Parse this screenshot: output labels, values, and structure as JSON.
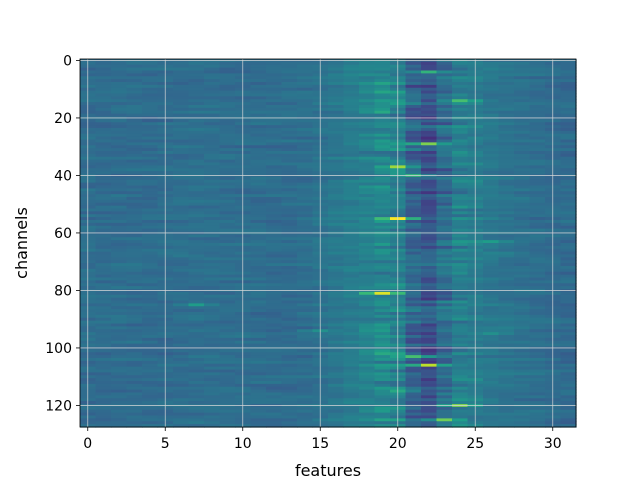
{
  "chart_data": {
    "type": "heatmap",
    "xlabel": "features",
    "ylabel": "channels",
    "columns": 32,
    "rows": 128,
    "xlim": [
      -0.5,
      31.5
    ],
    "ylim": [
      127.5,
      -0.5
    ],
    "y_inverted": true,
    "colormap": "viridis",
    "grid": true,
    "x_ticks": [
      0,
      5,
      10,
      15,
      20,
      25,
      30
    ],
    "x_tick_labels": [
      "0",
      "5",
      "10",
      "15",
      "20",
      "25",
      "30"
    ],
    "y_ticks": [
      0,
      20,
      40,
      60,
      80,
      100,
      120
    ],
    "y_tick_labels": [
      "0",
      "20",
      "40",
      "60",
      "80",
      "100",
      "120"
    ],
    "column_profile": [
      0.36,
      0.34,
      0.36,
      0.35,
      0.34,
      0.36,
      0.35,
      0.37,
      0.36,
      0.35,
      0.36,
      0.36,
      0.35,
      0.35,
      0.36,
      0.37,
      0.4,
      0.42,
      0.44,
      0.47,
      0.5,
      0.3,
      0.18,
      0.4,
      0.45,
      0.42,
      0.4,
      0.38,
      0.37,
      0.36,
      0.35,
      0.35
    ],
    "hotspots": [
      {
        "x": 20,
        "y": 55,
        "value": 1.0
      },
      {
        "x": 19,
        "y": 81,
        "value": 0.95
      },
      {
        "x": 22,
        "y": 106,
        "value": 0.9
      },
      {
        "x": 20,
        "y": 37,
        "value": 0.85
      },
      {
        "x": 22,
        "y": 29,
        "value": 0.8
      },
      {
        "x": 24,
        "y": 120,
        "value": 0.8
      },
      {
        "x": 23,
        "y": 125,
        "value": 0.78
      },
      {
        "x": 21,
        "y": 103,
        "value": 0.7
      },
      {
        "x": 24,
        "y": 14,
        "value": 0.7
      },
      {
        "x": 21,
        "y": 40,
        "value": 0.65
      },
      {
        "x": 22,
        "y": 4,
        "value": 0.65
      },
      {
        "x": 19,
        "y": 18,
        "value": 0.6
      },
      {
        "x": 20,
        "y": 115,
        "value": 0.6
      },
      {
        "x": 26,
        "y": 63,
        "value": 0.55
      },
      {
        "x": 7,
        "y": 85,
        "value": 0.55
      },
      {
        "x": 20,
        "y": 31,
        "value": 0.55
      },
      {
        "x": 15,
        "y": 94,
        "value": 0.5
      },
      {
        "x": 26,
        "y": 95,
        "value": 0.5
      }
    ],
    "colors": {
      "colormap_stops": [
        "#440154",
        "#482878",
        "#3e4989",
        "#31688e",
        "#26828e",
        "#1f9e89",
        "#35b779",
        "#6ece58",
        "#b5de2b",
        "#fde725"
      ],
      "grid": "#d8d8d8",
      "axes": "#000000"
    }
  }
}
